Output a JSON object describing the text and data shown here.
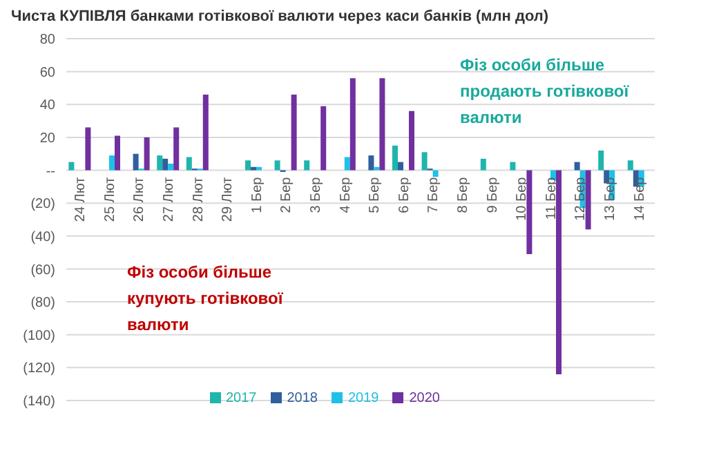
{
  "chart_data": {
    "type": "bar",
    "title": "Чиста КУПІВЛЯ банками готівкової валюти через каси банків (млн дол)",
    "categories": [
      "24 Лют",
      "25 Лют",
      "26 Лют",
      "27 Лют",
      "28 Лют",
      "29 Лют",
      "1 Бер",
      "2 Бер",
      "3 Бер",
      "4 Бер",
      "5 Бер",
      "6 Бер",
      "7 Бер",
      "8 Бер",
      "9 Бер",
      "10 Бер",
      "11 Бер",
      "12 Бер",
      "13 Бер",
      "14 Бер"
    ],
    "series": [
      {
        "name": "2017",
        "color": "#1fb5ad",
        "values": [
          5,
          null,
          null,
          9,
          8,
          null,
          6,
          6,
          6,
          null,
          null,
          15,
          11,
          null,
          7,
          5,
          null,
          null,
          12,
          6
        ]
      },
      {
        "name": "2018",
        "color": "#2f5f9e",
        "values": [
          null,
          null,
          10,
          7,
          1,
          null,
          2,
          -1,
          null,
          null,
          9,
          5,
          1,
          null,
          null,
          null,
          null,
          5,
          -8,
          -10
        ]
      },
      {
        "name": "2019",
        "color": "#1ec0e8",
        "values": [
          null,
          9,
          1,
          4,
          1,
          null,
          2,
          null,
          null,
          8,
          2,
          null,
          -4,
          null,
          null,
          null,
          -6,
          -23,
          -18,
          -10
        ]
      },
      {
        "name": "2020",
        "color": "#7030a0",
        "values": [
          26,
          21,
          20,
          26,
          46,
          null,
          null,
          46,
          39,
          56,
          56,
          36,
          null,
          null,
          null,
          -51,
          -124,
          -36,
          null,
          null
        ]
      }
    ],
    "ylim": [
      -140,
      80
    ],
    "yticks": [
      80,
      60,
      40,
      20,
      {
        "value": 0,
        "label": "--"
      },
      {
        "value": -20,
        "label": "(20)"
      },
      {
        "value": -40,
        "label": "(40)"
      },
      {
        "value": -60,
        "label": "(60)"
      },
      {
        "value": -80,
        "label": "(80)"
      },
      {
        "value": -100,
        "label": "(100)"
      },
      {
        "value": -120,
        "label": "(120)"
      },
      {
        "value": -140,
        "label": "(140)"
      }
    ],
    "grid": "y",
    "legend": "bottom",
    "annotations": [
      "Фіз особи більше продають готівкової валюти",
      "Фіз особи більше купують готівкової валюти"
    ]
  }
}
